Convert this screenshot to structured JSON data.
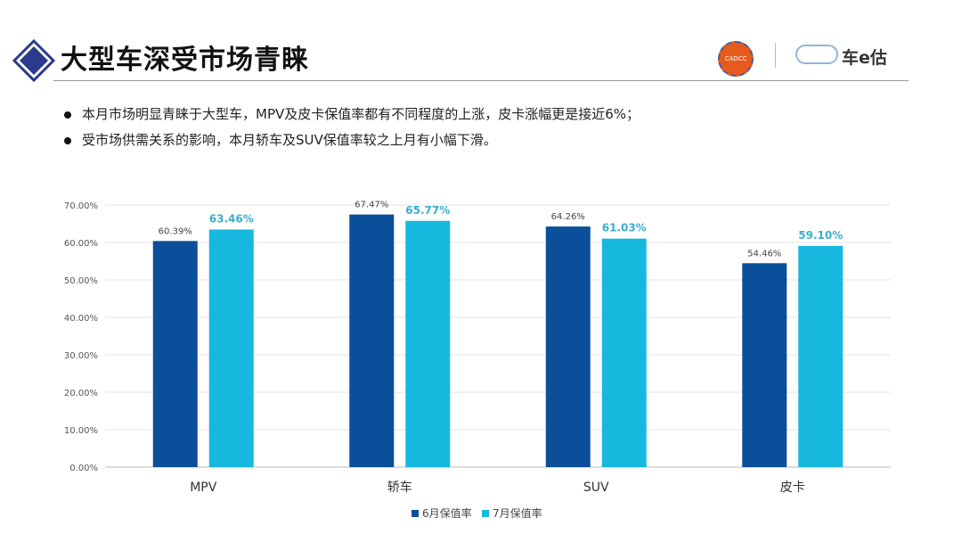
{
  "header": {
    "title": "大型车深受市场青睐",
    "seal_text": "CADCC",
    "brand": "车e估"
  },
  "bullets": [
    "本月市场明显青睐于大型车，MPV及皮卡保值率都有不同程度的上涨，皮卡涨幅更是接近6%；",
    "受市场供需关系的影响，本月轿车及SUV保值率较之上月有小幅下滑。"
  ],
  "colors": {
    "june": "#0b4f9a",
    "july": "#17b8dd",
    "accent": "#2b3a8a"
  },
  "chart_data": {
    "type": "bar",
    "categories": [
      "MPV",
      "轿车",
      "SUV",
      "皮卡"
    ],
    "series": [
      {
        "name": "6月保值率",
        "values": [
          60.39,
          67.47,
          64.26,
          54.46
        ],
        "labels": [
          "60.39%",
          "67.47%",
          "64.26%",
          "54.46%"
        ]
      },
      {
        "name": "7月保值率",
        "values": [
          63.46,
          65.77,
          61.03,
          59.1
        ],
        "labels": [
          "63.46%",
          "65.77%",
          "61.03%",
          "59.10%"
        ]
      }
    ],
    "yticks": [
      "0.00%",
      "10.00%",
      "20.00%",
      "30.00%",
      "40.00%",
      "50.00%",
      "60.00%",
      "70.00%"
    ],
    "ylim": [
      0,
      70
    ],
    "legend_position": "bottom",
    "grid": true
  }
}
